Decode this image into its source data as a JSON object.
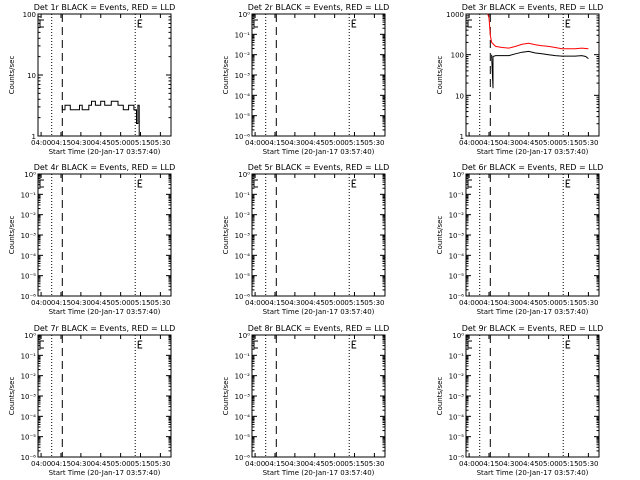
{
  "figure": {
    "xlabel": "Start Time (20-Jan-17 03:57:40)",
    "ylabel": "Counts/sec",
    "x_tick_labels": [
      "04:00",
      "04:15",
      "04:30",
      "04:45",
      "05:00",
      "05:15",
      "05:30"
    ],
    "colors": {
      "events": "#000000",
      "lld": "#ff0000",
      "background": "#ffffff"
    }
  },
  "chart_data": [
    {
      "type": "line",
      "title": "Det 1r BLACK = Events, RED = LLD",
      "x_range": [
        "03:57:40",
        "05:38"
      ],
      "y_scale": "log",
      "ylim": [
        1,
        100
      ],
      "y_ticks": [
        1,
        10,
        100
      ],
      "y_tick_labels": [
        "1",
        "10",
        "100"
      ],
      "dotted_lines": [
        "04:08",
        "05:11"
      ],
      "dashed_line": "04:16",
      "series": [
        {
          "color": "#000000",
          "points": [
            [
              "04:16",
              3.2
            ],
            [
              "04:16",
              2.7
            ],
            [
              "04:18",
              2.7
            ],
            [
              "04:18",
              3.2
            ],
            [
              "04:22",
              3.2
            ],
            [
              "04:22",
              2.7
            ],
            [
              "04:29",
              2.7
            ],
            [
              "04:29",
              3.2
            ],
            [
              "04:31",
              3.2
            ],
            [
              "04:31",
              2.7
            ],
            [
              "04:36",
              2.7
            ],
            [
              "04:36",
              3.2
            ],
            [
              "04:38",
              3.2
            ],
            [
              "04:38",
              3.7
            ],
            [
              "04:41",
              3.7
            ],
            [
              "04:41",
              3.2
            ],
            [
              "04:45",
              3.2
            ],
            [
              "04:45",
              3.7
            ],
            [
              "04:48",
              3.7
            ],
            [
              "04:48",
              3.2
            ],
            [
              "04:53",
              3.2
            ],
            [
              "04:53",
              3.7
            ],
            [
              "04:58",
              3.7
            ],
            [
              "04:58",
              3.2
            ],
            [
              "05:02",
              3.2
            ],
            [
              "05:02",
              2.7
            ],
            [
              "05:06",
              2.7
            ],
            [
              "05:06",
              3.2
            ],
            [
              "05:10",
              3.2
            ],
            [
              "05:10",
              2.7
            ],
            [
              "05:12",
              2.7
            ],
            [
              "05:12",
              1.6
            ],
            [
              "05:13",
              1.6
            ],
            [
              "05:13",
              3.2
            ],
            [
              "05:14",
              3.2
            ],
            [
              "05:14",
              1.0
            ]
          ]
        }
      ]
    },
    {
      "type": "line",
      "title": "Det 2r BLACK = Events, RED = LLD",
      "x_range": [
        "03:57:40",
        "05:38"
      ],
      "y_scale": "log",
      "ylim": [
        1e-06,
        1
      ],
      "y_ticks": [
        1e-06,
        1e-05,
        0.0001,
        0.001,
        0.01,
        0.1,
        1
      ],
      "y_tick_labels": [
        "10⁻⁶",
        "10⁻⁵",
        "10⁻⁴",
        "10⁻³",
        "10⁻²",
        "10⁻¹",
        "10⁰"
      ],
      "dotted_lines": [
        "04:08",
        "05:11"
      ],
      "dashed_line": "04:16",
      "series": []
    },
    {
      "type": "line",
      "title": "Det 3r BLACK = Events, RED = LLD",
      "x_range": [
        "03:57:40",
        "05:38"
      ],
      "y_scale": "log",
      "ylim": [
        1,
        1000
      ],
      "y_ticks": [
        1,
        10,
        100,
        1000
      ],
      "y_tick_labels": [
        "1",
        "10",
        "100",
        "1000"
      ],
      "dotted_lines": [
        "04:08",
        "05:11"
      ],
      "dashed_line": "04:16",
      "series": [
        {
          "color": "#ff0000",
          "points": [
            [
              "04:14",
              1000
            ],
            [
              "04:15",
              800
            ],
            [
              "04:16",
              300
            ],
            [
              "04:17",
              200
            ],
            [
              "04:20",
              160
            ],
            [
              "04:25",
              150
            ],
            [
              "04:30",
              145
            ],
            [
              "04:35",
              160
            ],
            [
              "04:40",
              180
            ],
            [
              "04:45",
              190
            ],
            [
              "04:50",
              175
            ],
            [
              "04:55",
              165
            ],
            [
              "05:00",
              160
            ],
            [
              "05:05",
              150
            ],
            [
              "05:10",
              140
            ],
            [
              "05:15",
              140
            ],
            [
              "05:20",
              140
            ],
            [
              "05:25",
              145
            ],
            [
              "05:30",
              140
            ]
          ]
        },
        {
          "color": "#000000",
          "points": [
            [
              "04:17",
              100
            ],
            [
              "04:18",
              15
            ],
            [
              "04:18",
              90
            ],
            [
              "04:20",
              95
            ],
            [
              "04:25",
              95
            ],
            [
              "04:30",
              95
            ],
            [
              "04:35",
              105
            ],
            [
              "04:40",
              115
            ],
            [
              "04:45",
              120
            ],
            [
              "04:50",
              110
            ],
            [
              "04:55",
              105
            ],
            [
              "05:00",
              100
            ],
            [
              "05:05",
              95
            ],
            [
              "05:10",
              92
            ],
            [
              "05:15",
              92
            ],
            [
              "05:20",
              92
            ],
            [
              "05:25",
              95
            ],
            [
              "05:28",
              90
            ],
            [
              "05:30",
              80
            ]
          ]
        }
      ]
    },
    {
      "type": "line",
      "title": "Det 4r BLACK = Events, RED = LLD",
      "x_range": [
        "03:57:40",
        "05:38"
      ],
      "y_scale": "log",
      "ylim": [
        1e-06,
        1
      ],
      "y_ticks": [
        1e-06,
        1e-05,
        0.0001,
        0.001,
        0.01,
        0.1,
        1
      ],
      "y_tick_labels": [
        "10⁻⁶",
        "10⁻⁵",
        "10⁻⁴",
        "10⁻³",
        "10⁻²",
        "10⁻¹",
        "10⁰"
      ],
      "dotted_lines": [
        "04:08",
        "05:11"
      ],
      "dashed_line": "04:16",
      "series": []
    },
    {
      "type": "line",
      "title": "Det 5r BLACK = Events, RED = LLD",
      "x_range": [
        "03:57:40",
        "05:38"
      ],
      "y_scale": "log",
      "ylim": [
        1e-06,
        1
      ],
      "y_ticks": [
        1e-06,
        1e-05,
        0.0001,
        0.001,
        0.01,
        0.1,
        1
      ],
      "y_tick_labels": [
        "10⁻⁶",
        "10⁻⁵",
        "10⁻⁴",
        "10⁻³",
        "10⁻²",
        "10⁻¹",
        "10⁰"
      ],
      "dotted_lines": [
        "04:08",
        "05:11"
      ],
      "dashed_line": "04:16",
      "series": []
    },
    {
      "type": "line",
      "title": "Det 6r BLACK = Events, RED = LLD",
      "x_range": [
        "03:57:40",
        "05:38"
      ],
      "y_scale": "log",
      "ylim": [
        1e-06,
        1
      ],
      "y_ticks": [
        1e-06,
        1e-05,
        0.0001,
        0.001,
        0.01,
        0.1,
        1
      ],
      "y_tick_labels": [
        "10⁻⁶",
        "10⁻⁵",
        "10⁻⁴",
        "10⁻³",
        "10⁻²",
        "10⁻¹",
        "10⁰"
      ],
      "dotted_lines": [
        "04:08",
        "05:11"
      ],
      "dashed_line": "04:16",
      "series": []
    },
    {
      "type": "line",
      "title": "Det 7r BLACK = Events, RED = LLD",
      "x_range": [
        "03:57:40",
        "05:38"
      ],
      "y_scale": "log",
      "ylim": [
        1e-06,
        1
      ],
      "y_ticks": [
        1e-06,
        1e-05,
        0.0001,
        0.001,
        0.01,
        0.1,
        1
      ],
      "y_tick_labels": [
        "10⁻⁶",
        "10⁻⁵",
        "10⁻⁴",
        "10⁻³",
        "10⁻²",
        "10⁻¹",
        "10⁰"
      ],
      "dotted_lines": [
        "04:08",
        "05:11"
      ],
      "dashed_line": "04:16",
      "series": []
    },
    {
      "type": "line",
      "title": "Det 8r BLACK = Events, RED = LLD",
      "x_range": [
        "03:57:40",
        "05:38"
      ],
      "y_scale": "log",
      "ylim": [
        1e-06,
        1
      ],
      "y_ticks": [
        1e-06,
        1e-05,
        0.0001,
        0.001,
        0.01,
        0.1,
        1
      ],
      "y_tick_labels": [
        "10⁻⁶",
        "10⁻⁵",
        "10⁻⁴",
        "10⁻³",
        "10⁻²",
        "10⁻¹",
        "10⁰"
      ],
      "dotted_lines": [
        "04:08",
        "05:11"
      ],
      "dashed_line": "04:16",
      "series": []
    },
    {
      "type": "line",
      "title": "Det 9r BLACK = Events, RED = LLD",
      "x_range": [
        "03:57:40",
        "05:38"
      ],
      "y_scale": "log",
      "ylim": [
        1e-06,
        1
      ],
      "y_ticks": [
        1e-06,
        1e-05,
        0.0001,
        0.001,
        0.01,
        0.1,
        1
      ],
      "y_tick_labels": [
        "10⁻⁶",
        "10⁻⁵",
        "10⁻⁴",
        "10⁻³",
        "10⁻²",
        "10⁻¹",
        "10⁰"
      ],
      "dotted_lines": [
        "04:08",
        "05:11"
      ],
      "dashed_line": "04:16",
      "series": []
    }
  ]
}
